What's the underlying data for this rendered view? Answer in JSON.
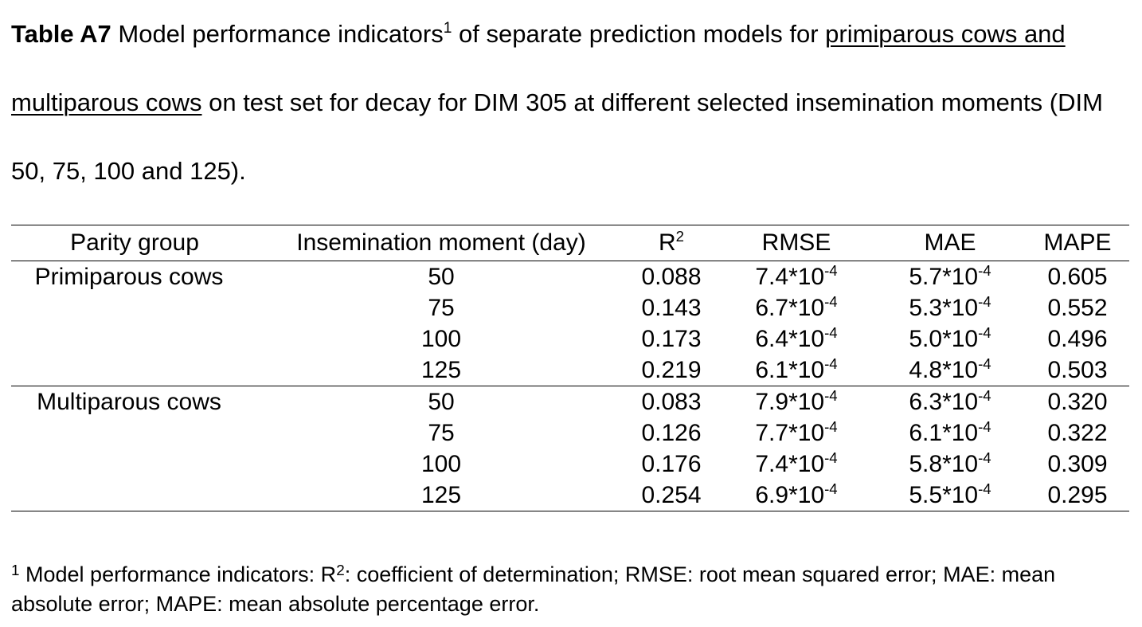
{
  "caption": {
    "label": "Table A7",
    "text_before_sup": " Model performance indicators",
    "sup": "1",
    "text_after_sup": " of separate prediction models for ",
    "underlined": "primiparous cows and multiparous cows",
    "text_end": " on test set for decay for DIM 305 at different selected insemination moments (DIM 50, 75, 100 and 125)."
  },
  "table": {
    "headers": {
      "parity": "Parity group",
      "insemination": "Insemination moment (day)",
      "r2_base": "R",
      "r2_sup": "2",
      "rmse": "RMSE",
      "mae": "MAE",
      "mape": "MAPE"
    },
    "exp_base": "*10",
    "exp_sup": "-4",
    "groups": [
      {
        "name": "Primiparous cows",
        "rows": [
          {
            "moment": "50",
            "r2": "0.088",
            "rmse": "7.4",
            "mae": "5.7",
            "mape": "0.605"
          },
          {
            "moment": "75",
            "r2": "0.143",
            "rmse": "6.7",
            "mae": "5.3",
            "mape": "0.552"
          },
          {
            "moment": "100",
            "r2": "0.173",
            "rmse": "6.4",
            "mae": "5.0",
            "mape": "0.496"
          },
          {
            "moment": "125",
            "r2": "0.219",
            "rmse": "6.1",
            "mae": "4.8",
            "mape": "0.503"
          }
        ]
      },
      {
        "name": "Multiparous cows",
        "rows": [
          {
            "moment": "50",
            "r2": "0.083",
            "rmse": "7.9",
            "mae": "6.3",
            "mape": "0.320"
          },
          {
            "moment": "75",
            "r2": "0.126",
            "rmse": "7.7",
            "mae": "6.1",
            "mape": "0.322"
          },
          {
            "moment": "100",
            "r2": "0.176",
            "rmse": "7.4",
            "mae": "5.8",
            "mape": "0.309"
          },
          {
            "moment": "125",
            "r2": "0.254",
            "rmse": "6.9",
            "mae": "5.5",
            "mape": "0.295"
          }
        ]
      }
    ]
  },
  "footnote": {
    "sup": "1",
    "text_a": " Model performance indicators: R",
    "sup2": "2",
    "text_b": ": coefficient of determination; RMSE: root mean squared error; MAE: mean absolute error; MAPE: mean absolute percentage error."
  }
}
